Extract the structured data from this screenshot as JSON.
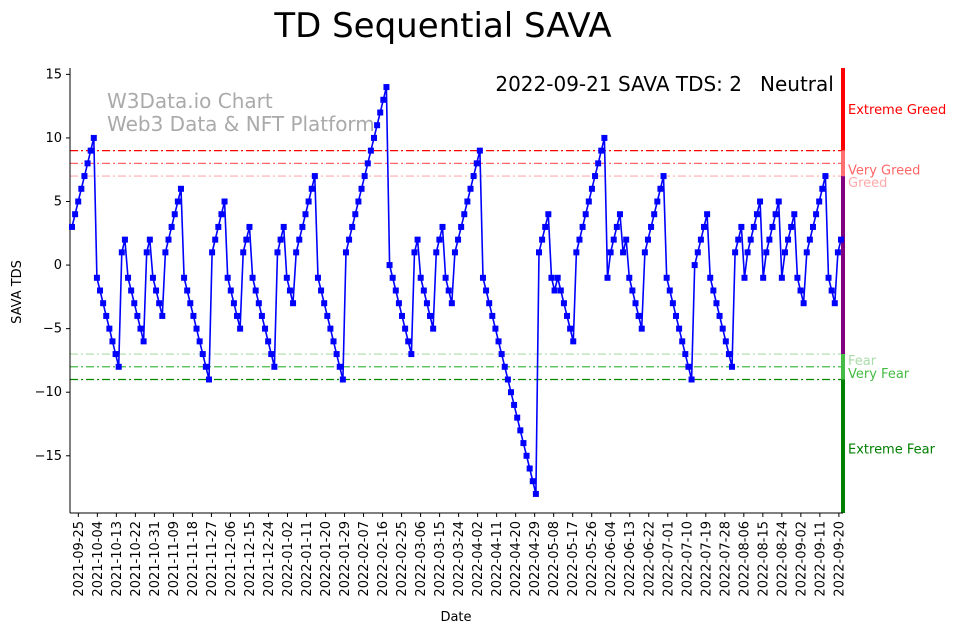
{
  "chart_data": {
    "type": "line",
    "title": "TD Sequential SAVA",
    "xlabel": "Date",
    "ylabel": "SAVA TDS",
    "ylim": [
      -19.5,
      15.5
    ],
    "yticks": [
      -15,
      -10,
      -5,
      0,
      5,
      10,
      15
    ],
    "date_start": "2021-09-22",
    "date_end": "2022-09-21",
    "xticks": [
      "2021-09-25",
      "2021-10-04",
      "2021-10-13",
      "2021-10-22",
      "2021-10-31",
      "2021-11-09",
      "2021-11-18",
      "2021-11-27",
      "2021-12-06",
      "2021-12-15",
      "2021-12-24",
      "2022-01-02",
      "2022-01-11",
      "2022-01-20",
      "2022-01-29",
      "2022-02-07",
      "2022-02-16",
      "2022-02-25",
      "2022-03-06",
      "2022-03-15",
      "2022-03-24",
      "2022-04-02",
      "2022-04-11",
      "2022-04-20",
      "2022-04-29",
      "2022-05-08",
      "2022-05-17",
      "2022-05-26",
      "2022-06-04",
      "2022-06-13",
      "2022-06-22",
      "2022-07-01",
      "2022-07-10",
      "2022-07-19",
      "2022-07-28",
      "2022-08-06",
      "2022-08-15",
      "2022-08-24",
      "2022-09-02",
      "2022-09-11",
      "2022-09-20"
    ],
    "series": [
      {
        "name": "SAVA TDS",
        "color": "#0000ff",
        "values": [
          3,
          4,
          5,
          6,
          7,
          8,
          9,
          10,
          -1,
          -2,
          -3,
          -4,
          -5,
          -6,
          -7,
          -8,
          1,
          2,
          -1,
          -2,
          -3,
          -4,
          -5,
          -6,
          1,
          2,
          -1,
          -2,
          -3,
          -4,
          1,
          2,
          3,
          4,
          5,
          6,
          -1,
          -2,
          -3,
          -4,
          -5,
          -6,
          -7,
          -8,
          -9,
          1,
          2,
          3,
          4,
          5,
          -1,
          -2,
          -3,
          -4,
          -5,
          1,
          2,
          3,
          -1,
          -2,
          -3,
          -4,
          -5,
          -6,
          -7,
          -8,
          1,
          2,
          3,
          -1,
          -2,
          -3,
          1,
          2,
          3,
          4,
          5,
          6,
          7,
          -1,
          -2,
          -3,
          -4,
          -5,
          -6,
          -7,
          -8,
          -9,
          1,
          2,
          3,
          4,
          5,
          6,
          7,
          8,
          9,
          10,
          11,
          12,
          13,
          14,
          0,
          -1,
          -2,
          -3,
          -4,
          -5,
          -6,
          -7,
          1,
          2,
          -1,
          -2,
          -3,
          -4,
          -5,
          1,
          2,
          3,
          -1,
          -2,
          -3,
          1,
          2,
          3,
          4,
          5,
          6,
          7,
          8,
          9,
          -1,
          -2,
          -3,
          -4,
          -5,
          -6,
          -7,
          -8,
          -9,
          -10,
          -11,
          -12,
          -13,
          -14,
          -15,
          -16,
          -17,
          -18,
          1,
          2,
          3,
          4,
          -1,
          -2,
          -1,
          -2,
          -3,
          -4,
          -5,
          -6,
          1,
          2,
          3,
          4,
          5,
          6,
          7,
          8,
          9,
          10,
          -1,
          1,
          2,
          3,
          4,
          1,
          2,
          -1,
          -2,
          -3,
          -4,
          -5,
          1,
          2,
          3,
          4,
          5,
          6,
          7,
          -1,
          -2,
          -3,
          -4,
          -5,
          -6,
          -7,
          -8,
          -9,
          0,
          1,
          2,
          3,
          4,
          -1,
          -2,
          -3,
          -4,
          -5,
          -6,
          -7,
          -8,
          1,
          2,
          3,
          -1,
          1,
          2,
          3,
          4,
          5,
          -1,
          1,
          2,
          3,
          4,
          5,
          -1,
          1,
          2,
          3,
          4,
          -1,
          -2,
          -3,
          1,
          2,
          3,
          4,
          5,
          6,
          7,
          -1,
          -2,
          -3,
          1,
          2
        ]
      }
    ],
    "threshold_lines": [
      {
        "value": 9,
        "label": "",
        "color": "#ff0000",
        "style": "dashdot"
      },
      {
        "value": 8,
        "label": "Very Greed",
        "color": "#ff6666",
        "style": "dashdot"
      },
      {
        "value": 7,
        "label": "Greed",
        "color": "#ffaaaa",
        "style": "dashdot"
      },
      {
        "value": -7,
        "label": "Fear",
        "color": "#aaddaa",
        "style": "dashdot"
      },
      {
        "value": -8,
        "label": "Very Fear",
        "color": "#44bb44",
        "style": "dashdot"
      },
      {
        "value": -9,
        "label": "",
        "color": "#008800",
        "style": "dashdot"
      }
    ],
    "zone_labels": [
      {
        "label": "Extreme Greed",
        "value": 12.2,
        "color": "#ff0000"
      },
      {
        "label": "Extreme Fear",
        "value": -14.5,
        "color": "#008000"
      }
    ],
    "side_bar": [
      {
        "from": 9,
        "to": 15.5,
        "color": "#ff0000"
      },
      {
        "from": 7,
        "to": 9,
        "color": "#ff7070"
      },
      {
        "from": -7,
        "to": 7,
        "color": "#800080"
      },
      {
        "from": -9,
        "to": -7,
        "color": "#44bb44"
      },
      {
        "from": -19.5,
        "to": -9,
        "color": "#008000"
      }
    ]
  },
  "status": {
    "text": "2022-09-21 SAVA TDS: 2",
    "label": "Neutral",
    "label_color": "#800080"
  },
  "watermark": {
    "line1": "W3Data.io Chart",
    "line2": "Web3 Data & NFT Platform"
  }
}
